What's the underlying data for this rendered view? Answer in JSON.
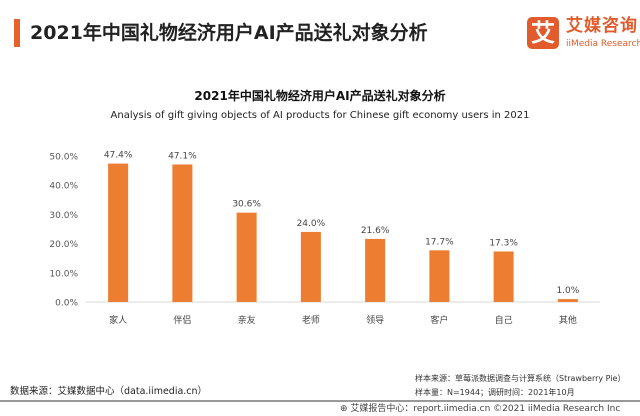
{
  "header": {
    "title": "2021年中国礼物经济用户AI产品送礼对象分析"
  },
  "logo": {
    "glyph": "艾",
    "name_cn": "艾媒咨询",
    "name_en": "iiMedia Research"
  },
  "colors": {
    "accent": "#e8612c",
    "bar": "#ed7d31"
  },
  "chart_data": {
    "type": "bar",
    "title": "2021年中国礼物经济用户AI产品送礼对象分析",
    "subtitle": "Analysis of gift giving objects of AI products for Chinese gift economy users in 2021",
    "categories": [
      "家人",
      "伴侣",
      "亲友",
      "老师",
      "领导",
      "客户",
      "自己",
      "其他"
    ],
    "values": [
      47.4,
      47.1,
      30.6,
      24.0,
      21.6,
      17.7,
      17.3,
      1.0
    ],
    "value_labels": [
      "47.4%",
      "47.1%",
      "30.6%",
      "24.0%",
      "21.6%",
      "17.7%",
      "17.3%",
      "1.0%"
    ],
    "yticks": [
      "0.0%",
      "10.0%",
      "20.0%",
      "30.0%",
      "40.0%",
      "50.0%"
    ],
    "ylim": [
      0,
      50
    ],
    "grid": false,
    "legend": "none"
  },
  "footer": {
    "source": "数据来源：艾媒数据中心（data.iimedia.cn）",
    "sample_source": "样本来源：草莓派数据调查与计算系统（Strawberry Pie）",
    "sample_size": "样本量：N=1944；调研时间：2021年10月",
    "report": "艾媒报告中心：report.iimedia.cn  ©2021  iiMedia Research Inc"
  }
}
